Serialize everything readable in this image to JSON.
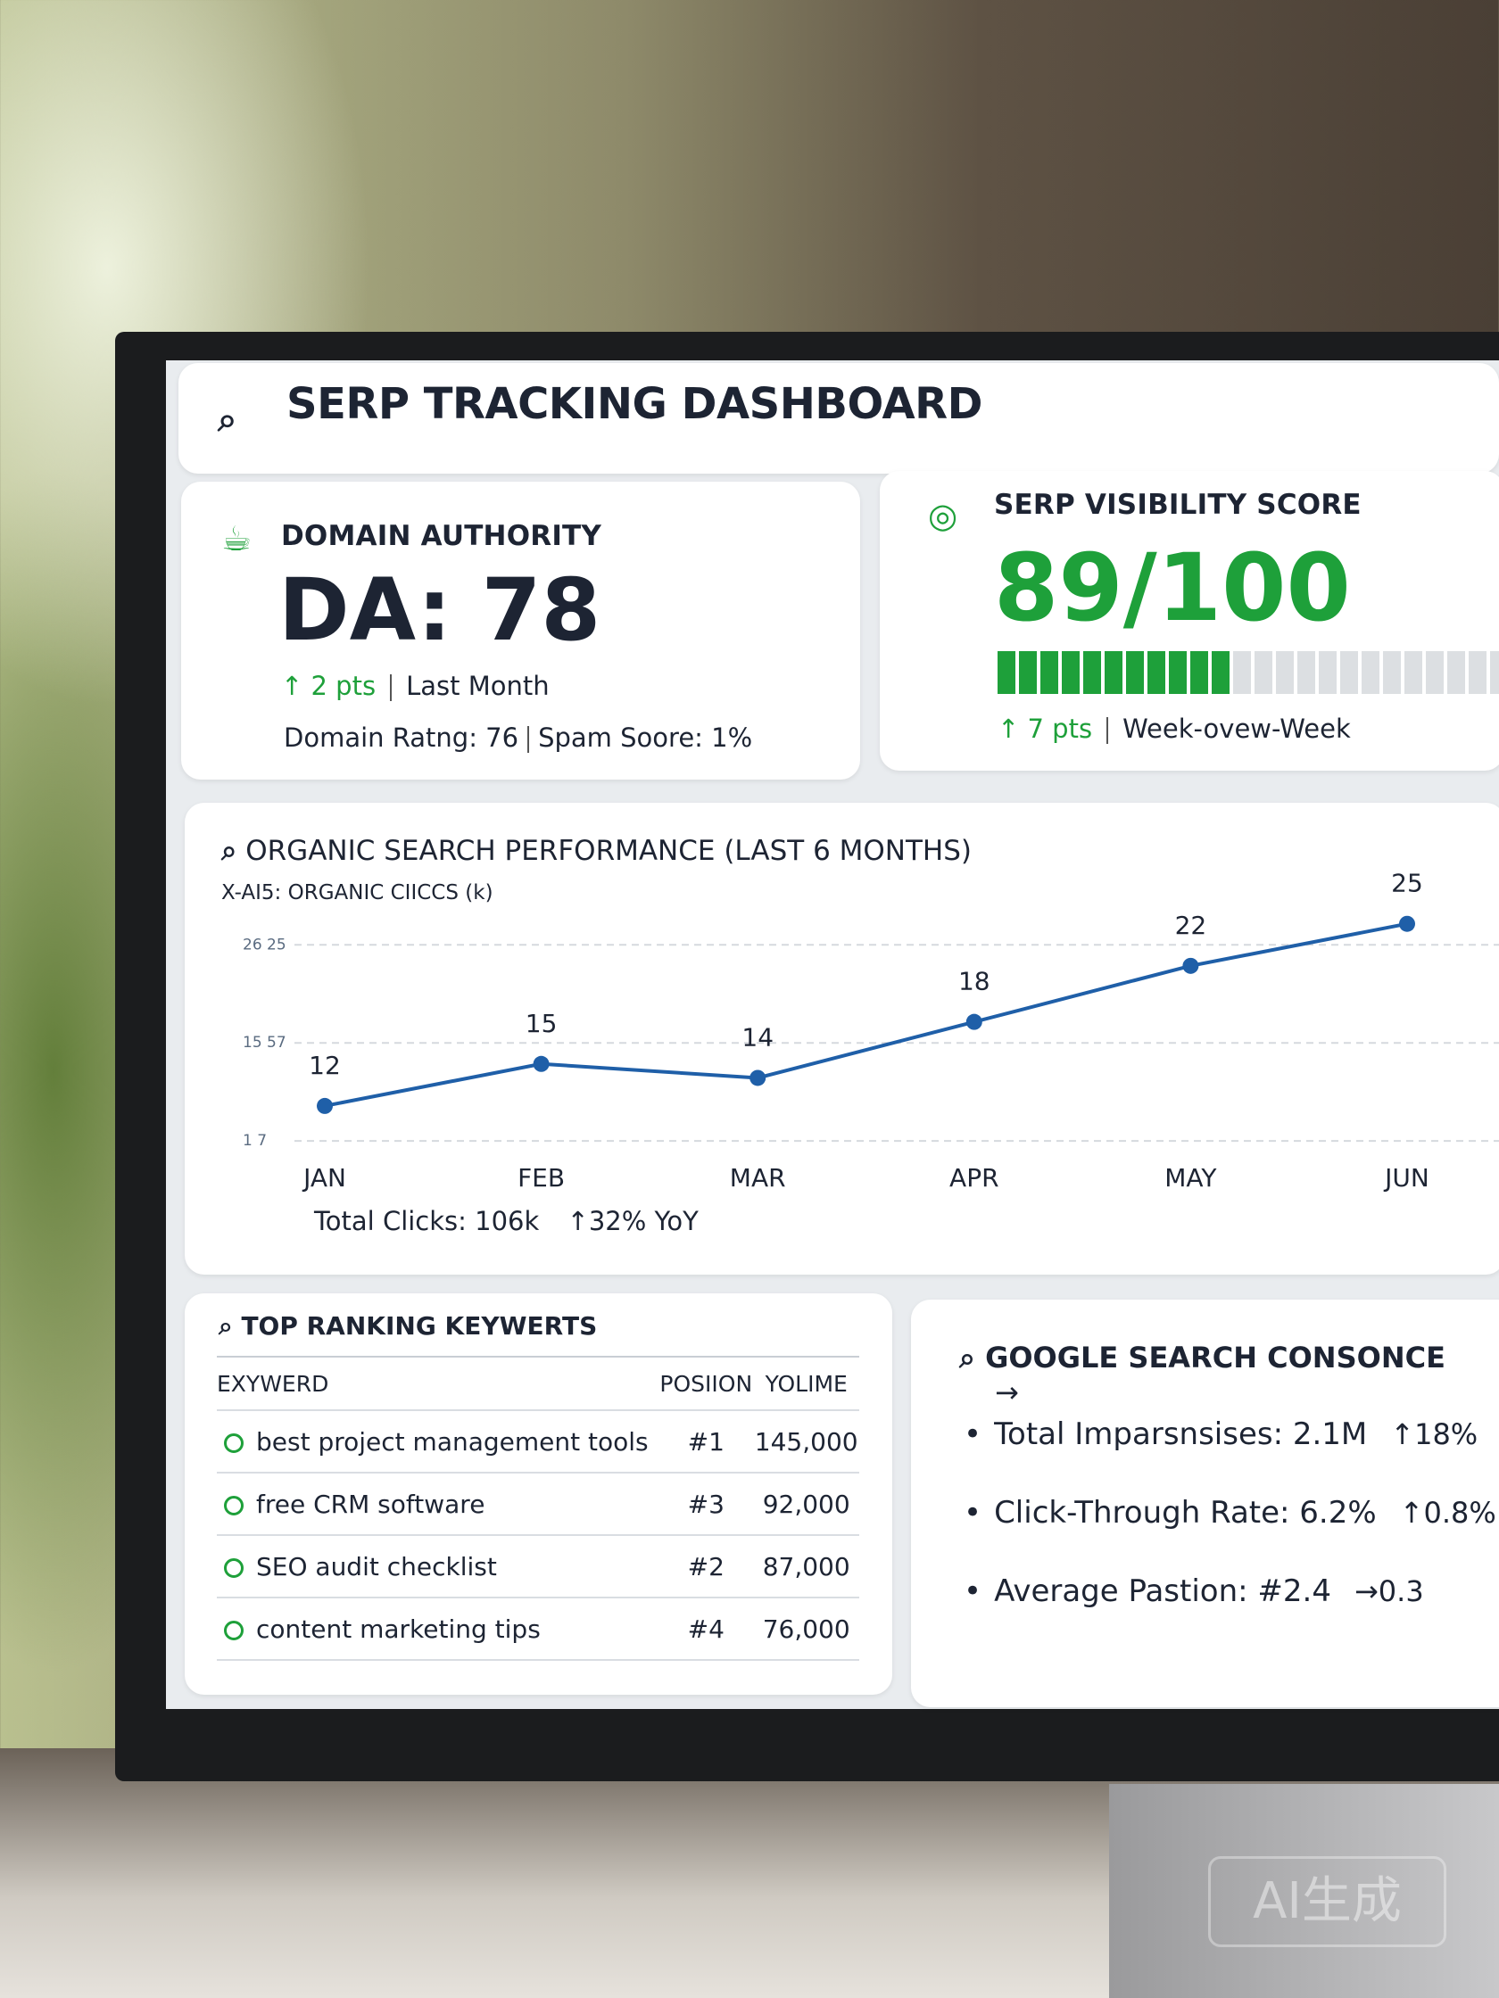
{
  "header": {
    "title": "SERP TRACKING DASHBOARD"
  },
  "domain_authority": {
    "title": "DOMAIN AUTHORITY",
    "score": "DA: 78",
    "change": "↑ 2 pts",
    "period": "Last Month",
    "rating": "Domain Ratng: 76",
    "spam": "Spam Soore: 1%"
  },
  "visibility": {
    "title": "SERP VISIBILITY SCORE",
    "score": "89/100",
    "change": "↑ 7 pts",
    "period": "Week-ovew-Week"
  },
  "organic_chart": {
    "type": "line",
    "title": "ORGANIC SEARCH PERFORMANCE (LAST 6 MONTHS)",
    "axis_label": "X-AI5:  ORGANIC CIICCS (k)",
    "categories": [
      "JAN",
      "FEB",
      "MAR",
      "APR",
      "MAY",
      "JUN"
    ],
    "values": [
      12,
      15,
      14,
      18,
      22,
      25
    ],
    "color": "#1f5fa8",
    "ylim": [
      9,
      26
    ],
    "yticks": [
      {
        "value": 9.5,
        "label": "1  7"
      },
      {
        "value": 16.5,
        "label": "15  57"
      },
      {
        "value": 23.5,
        "label": "26  25"
      }
    ],
    "grid": true,
    "total": "Total Clicks: 106k",
    "yoy": "↑32% YoY"
  },
  "keywords": {
    "title": "TOP RANKING KEYWERTS",
    "columns": [
      "EXYWERD",
      "POSIION",
      "YOLIME"
    ],
    "rows": [
      [
        "best project management tools",
        "#1",
        "145,000"
      ],
      [
        "free CRM software",
        "#3",
        "92,000"
      ],
      [
        "SEO audit checklist",
        "#2",
        "87,000"
      ],
      [
        "content marketing tips",
        "#4",
        "76,000"
      ]
    ]
  },
  "search_console": {
    "title": "GOOGLE SEARCH CONSONCE",
    "items": [
      {
        "label": "Total Imparsnsises: 2.1M",
        "change": "↑18%"
      },
      {
        "label": "Click-Through Rate: 6.2%",
        "change": "↑0.8%"
      },
      {
        "label": "Average Pastion: #2.4",
        "change": "→0.3"
      }
    ]
  },
  "watermark": "AI生成"
}
